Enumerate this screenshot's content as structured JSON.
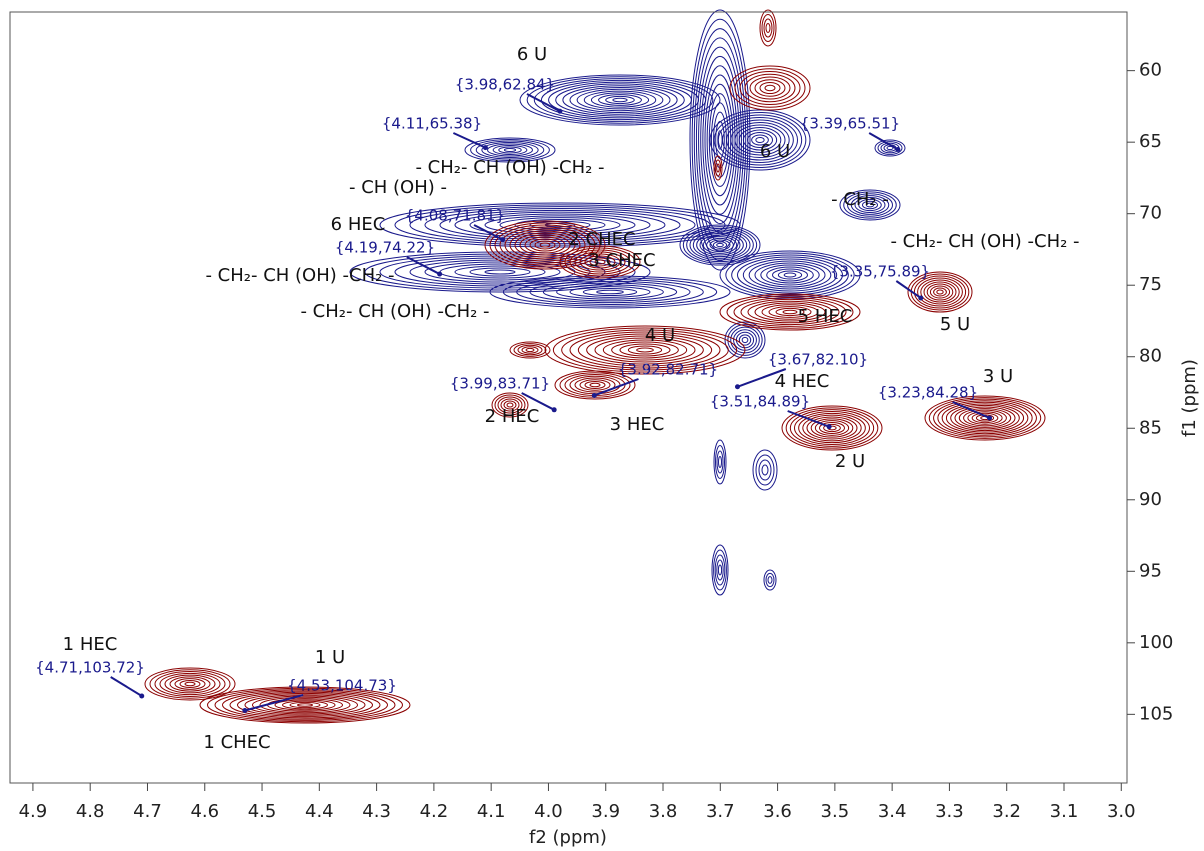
{
  "chart_data": {
    "type": "contour",
    "x_label": "f2 (ppm)",
    "y_label": "f1 (ppm)",
    "xlim": [
      4.94,
      2.99
    ],
    "ylim": [
      55.9,
      109.8
    ],
    "xticks": [
      4.9,
      4.8,
      4.7,
      4.6,
      4.5,
      4.4,
      4.3,
      4.2,
      4.1,
      {
        "value": 4,
        "label": "4.0"
      },
      3.9,
      3.8,
      3.7,
      3.6,
      3.5,
      3.4,
      3.3,
      3.2,
      3.1,
      {
        "value": 3,
        "label": "3.0"
      }
    ],
    "yticks": [
      60,
      65,
      70,
      75,
      80,
      85,
      90,
      95,
      100,
      105
    ],
    "peak_color": "#1a1a8c",
    "positive_color": "#1a1a8c",
    "negative_color": "#8b0000",
    "peaks": {
      "x": [
        3.98,
        4.11,
        4.08,
        4.19,
        3.99,
        3.92,
        3.67,
        3.51,
        3.23,
        4.71,
        4.53,
        3.39,
        3.35
      ],
      "y": [
        62.84,
        65.38,
        71.81,
        74.22,
        83.71,
        82.71,
        82.1,
        84.89,
        84.28,
        103.72,
        104.73,
        65.51,
        75.89
      ],
      "value_labels": [
        "{3.98,62.84}",
        "{4.11,65.38}",
        "{4.08,71.81}",
        "{4.19,74.22}",
        "{3.99,83.71}",
        "{3.92,82.71}",
        "{3.67,82.10}",
        "{3.51,84.89}",
        "{3.23,84.28}",
        "{4.71,103.72}",
        "{4.53,104.73}",
        "{3.39,65.51}",
        "{3.35,75.89}"
      ]
    },
    "annotations": [
      "6 U",
      "6 U",
      "- CH (OH) -",
      "6 HEC",
      "2 CHEC",
      "3 CHEC",
      "- CH₂- CH (OH) -CH₂ -",
      "- CH₂- CH (OH) -CH₂ -",
      "- CH₂- CH (OH) -CH₂ -",
      "- CH₂- CH (OH) -CH₂ -",
      "- CH₂ -",
      "5 HEC",
      "4 U",
      "4 HEC",
      "5 U",
      "3 U",
      "2 U",
      "2 HEC",
      "3 HEC",
      "1 HEC",
      "1 U",
      "1 CHEC"
    ]
  }
}
